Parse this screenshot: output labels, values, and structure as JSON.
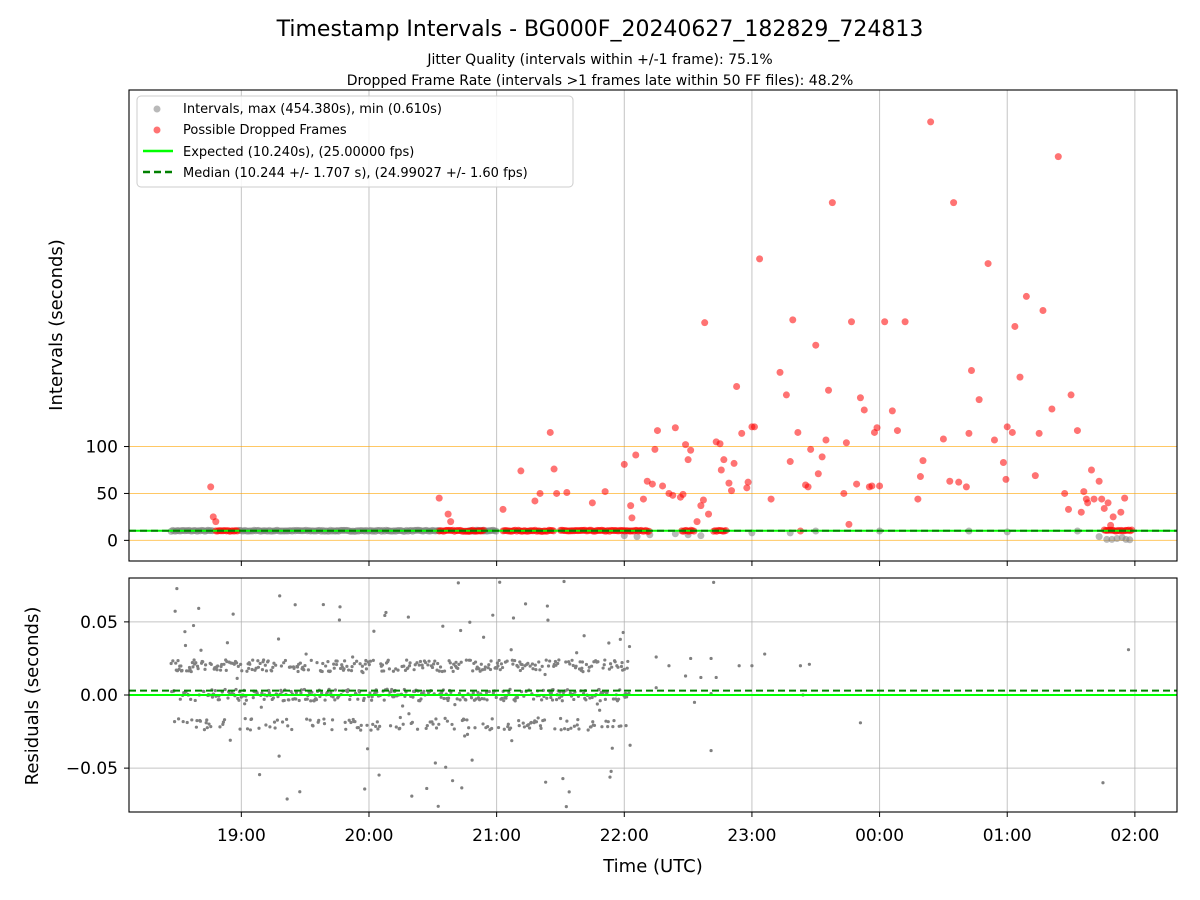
{
  "chart_data": [
    {
      "type": "scatter",
      "title": "Timestamp Intervals - BG000F_20240627_182829_724813",
      "subtitle_lines": [
        "Jitter Quality (intervals within +/-1 frame): 75.1%",
        "Dropped Frame Rate (intervals >1 frames late within 50 FF files): 48.2%"
      ],
      "xlabel": "",
      "ylabel": "Intervals (seconds)",
      "x_unit": "hours since 18:00 UTC (axis shows clock time)",
      "xlim": [
        0.12,
        8.33
      ],
      "ylim": [
        -22,
        480
      ],
      "yticks": [
        0,
        50,
        100
      ],
      "hlines_orange": [
        0,
        50,
        100
      ],
      "grid": "x only",
      "legend_position": "top-left",
      "legend": [
        "Intervals, max (454.380s), min (0.610s)",
        "Possible Dropped Frames",
        "Expected (10.240s), (25.00000 fps)",
        "Median (10.244 +/- 1.707 s), (24.99027 +/- 1.60 fps)"
      ],
      "expected_value": 10.24,
      "median_value": 10.244,
      "series": [
        {
          "name": "Intervals",
          "color": "#808080",
          "bands": [
            [
              0.45,
              0.78,
              10.2
            ],
            [
              0.98,
              1.35,
              10.2
            ],
            [
              1.35,
              1.75,
              10.2
            ],
            [
              1.75,
              2.15,
              10.2
            ],
            [
              2.15,
              2.55,
              10.2
            ],
            [
              2.78,
              3.0,
              10.2
            ]
          ],
          "points": [
            [
              4.0,
              5
            ],
            [
              4.1,
              4
            ],
            [
              4.2,
              6
            ],
            [
              4.4,
              7
            ],
            [
              4.5,
              6
            ],
            [
              4.6,
              5
            ],
            [
              5.0,
              8
            ],
            [
              5.3,
              8
            ],
            [
              5.5,
              10
            ],
            [
              6.0,
              10
            ],
            [
              6.7,
              10
            ],
            [
              7.0,
              9
            ],
            [
              7.55,
              10
            ],
            [
              7.72,
              4
            ],
            [
              7.78,
              1
            ],
            [
              7.82,
              1
            ],
            [
              7.86,
              2
            ],
            [
              7.9,
              3
            ],
            [
              7.93,
              1
            ],
            [
              7.96,
              0.6
            ]
          ]
        },
        {
          "name": "Possible Dropped Frames",
          "color": "#ff0000",
          "bands": [
            [
              0.8,
              0.98,
              10.2
            ],
            [
              2.55,
              2.9,
              10.2
            ],
            [
              3.05,
              3.45,
              10.2
            ],
            [
              3.5,
              4.05,
              10.2
            ],
            [
              4.05,
              4.2,
              10.2
            ],
            [
              4.45,
              4.55,
              10.2
            ],
            [
              4.7,
              4.8,
              10.2
            ],
            [
              7.76,
              7.98,
              10.5
            ]
          ],
          "points": [
            [
              0.76,
              57
            ],
            [
              0.78,
              25
            ],
            [
              0.8,
              20
            ],
            [
              2.55,
              45
            ],
            [
              2.62,
              28
            ],
            [
              2.64,
              20
            ],
            [
              3.05,
              33
            ],
            [
              3.19,
              74
            ],
            [
              3.3,
              42
            ],
            [
              3.34,
              50
            ],
            [
              3.42,
              115
            ],
            [
              3.45,
              76
            ],
            [
              3.47,
              50
            ],
            [
              3.55,
              51
            ],
            [
              3.75,
              40
            ],
            [
              3.85,
              52
            ],
            [
              4.0,
              81
            ],
            [
              4.05,
              37
            ],
            [
              4.06,
              24
            ],
            [
              4.09,
              91
            ],
            [
              4.15,
              44
            ],
            [
              4.18,
              63
            ],
            [
              4.22,
              60
            ],
            [
              4.24,
              97
            ],
            [
              4.26,
              117
            ],
            [
              4.3,
              58
            ],
            [
              4.35,
              50
            ],
            [
              4.38,
              48
            ],
            [
              4.4,
              120
            ],
            [
              4.44,
              46
            ],
            [
              4.46,
              49
            ],
            [
              4.48,
              102
            ],
            [
              4.5,
              86
            ],
            [
              4.52,
              96
            ],
            [
              4.57,
              20
            ],
            [
              4.6,
              37
            ],
            [
              4.62,
              43
            ],
            [
              4.63,
              232
            ],
            [
              4.66,
              28
            ],
            [
              4.72,
              105
            ],
            [
              4.75,
              103
            ],
            [
              4.76,
              75
            ],
            [
              4.78,
              86
            ],
            [
              4.82,
              61
            ],
            [
              4.84,
              53
            ],
            [
              4.86,
              82
            ],
            [
              4.88,
              164
            ],
            [
              4.92,
              114
            ],
            [
              4.96,
              56
            ],
            [
              4.97,
              62
            ],
            [
              5.0,
              121
            ],
            [
              5.02,
              121
            ],
            [
              5.06,
              300
            ],
            [
              5.15,
              44
            ],
            [
              5.22,
              179
            ],
            [
              5.27,
              155
            ],
            [
              5.3,
              84
            ],
            [
              5.32,
              235
            ],
            [
              5.36,
              115
            ],
            [
              5.38,
              10
            ],
            [
              5.42,
              59
            ],
            [
              5.44,
              57
            ],
            [
              5.46,
              97
            ],
            [
              5.5,
              208
            ],
            [
              5.52,
              71
            ],
            [
              5.55,
              89
            ],
            [
              5.58,
              107
            ],
            [
              5.6,
              160
            ],
            [
              5.63,
              360
            ],
            [
              5.72,
              50
            ],
            [
              5.74,
              104
            ],
            [
              5.76,
              17
            ],
            [
              5.78,
              233
            ],
            [
              5.82,
              60
            ],
            [
              5.85,
              152
            ],
            [
              5.88,
              139
            ],
            [
              5.92,
              57
            ],
            [
              5.94,
              58
            ],
            [
              5.96,
              115
            ],
            [
              5.98,
              120
            ],
            [
              6.0,
              58
            ],
            [
              6.04,
              233
            ],
            [
              6.1,
              138
            ],
            [
              6.14,
              117
            ],
            [
              6.2,
              233
            ],
            [
              6.3,
              44
            ],
            [
              6.32,
              68
            ],
            [
              6.34,
              85
            ],
            [
              6.4,
              446
            ],
            [
              6.5,
              108
            ],
            [
              6.55,
              63
            ],
            [
              6.58,
              360
            ],
            [
              6.62,
              62
            ],
            [
              6.68,
              57
            ],
            [
              6.7,
              114
            ],
            [
              6.72,
              181
            ],
            [
              6.78,
              150
            ],
            [
              6.85,
              295
            ],
            [
              6.9,
              107
            ],
            [
              6.97,
              83
            ],
            [
              6.99,
              65
            ],
            [
              7.0,
              121
            ],
            [
              7.04,
              115
            ],
            [
              7.06,
              228
            ],
            [
              7.1,
              174
            ],
            [
              7.15,
              260
            ],
            [
              7.22,
              69
            ],
            [
              7.25,
              114
            ],
            [
              7.28,
              245
            ],
            [
              7.35,
              140
            ],
            [
              7.4,
              409
            ],
            [
              7.45,
              50
            ],
            [
              7.48,
              33
            ],
            [
              7.5,
              155
            ],
            [
              7.55,
              117
            ],
            [
              7.58,
              30
            ],
            [
              7.6,
              52
            ],
            [
              7.62,
              44
            ],
            [
              7.63,
              40
            ],
            [
              7.66,
              75
            ],
            [
              7.68,
              44
            ],
            [
              7.72,
              63
            ],
            [
              7.74,
              44
            ],
            [
              7.76,
              34
            ],
            [
              7.79,
              40
            ],
            [
              7.81,
              16
            ],
            [
              7.83,
              25
            ],
            [
              7.89,
              30
            ],
            [
              7.92,
              45
            ]
          ]
        }
      ]
    },
    {
      "type": "scatter",
      "title": "",
      "xlabel": "Time (UTC)",
      "ylabel": "Residuals (seconds)",
      "xlim": [
        0.12,
        8.33
      ],
      "ylim": [
        -0.08,
        0.08
      ],
      "yticks": [
        -0.05,
        0.0,
        0.05
      ],
      "ytick_labels": [
        "−0.05",
        "0.00",
        "0.05"
      ],
      "xticks": [
        1,
        2,
        3,
        4,
        5,
        6,
        7,
        8
      ],
      "xtick_labels": [
        "19:00",
        "20:00",
        "21:00",
        "22:00",
        "23:00",
        "00:00",
        "01:00",
        "02:00"
      ],
      "grid": "both",
      "expected_residual": 0.0,
      "median_residual": 0.003,
      "series": [
        {
          "name": "Residuals",
          "color": "#808080",
          "dense_range": [
            0.45,
            4.05
          ],
          "dense_levels": [
            0.02,
            0.0,
            -0.02
          ],
          "sparse_points": [
            [
              4.25,
              0.026
            ],
            [
              4.25,
              0.005
            ],
            [
              4.35,
              0.02
            ],
            [
              4.48,
              0.013
            ],
            [
              4.52,
              0.025
            ],
            [
              4.6,
              0.012
            ],
            [
              4.55,
              -0.005
            ],
            [
              4.68,
              -0.038
            ],
            [
              4.68,
              0.025
            ],
            [
              4.7,
              0.077
            ],
            [
              4.68,
              0.001
            ],
            [
              4.72,
              0.012
            ],
            [
              4.9,
              0.02
            ],
            [
              5.0,
              0.02
            ],
            [
              5.1,
              0.028
            ],
            [
              5.38,
              0.02
            ],
            [
              5.4,
              0.0
            ],
            [
              5.45,
              0.021
            ],
            [
              5.85,
              -0.019
            ],
            [
              7.75,
              -0.06
            ],
            [
              7.95,
              0.031
            ]
          ]
        }
      ]
    }
  ]
}
